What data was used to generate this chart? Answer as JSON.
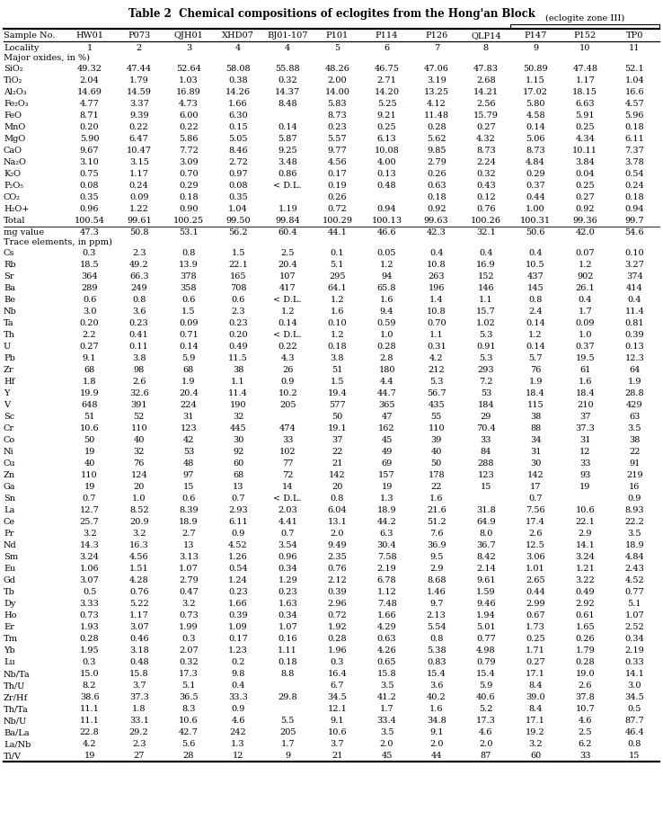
{
  "title": "Table 2  Chemical compositions of eclogites from the Hong'an Block",
  "header_group_label": "(eclogite zone III)",
  "col_headers": [
    "Sample No.",
    "HW01",
    "P073",
    "QJH01",
    "XHD07",
    "BJ01-107",
    "P101",
    "P114",
    "P126",
    "QLP14",
    "P147",
    "P152",
    "TP0"
  ],
  "locality_row": [
    "Locality",
    "1",
    "2",
    "3",
    "4",
    "4",
    "5",
    "6",
    "7",
    "8",
    "9",
    "10",
    "11"
  ],
  "section1_label": "Major oxides, in %)",
  "section2_label": "Trace elements, in ppm)",
  "rows": [
    [
      "SiO₂",
      "49.32",
      "47.44",
      "52.64",
      "58.08",
      "55.88",
      "48.26",
      "46.75",
      "47.06",
      "47.83",
      "50.89",
      "47.48",
      "52.1"
    ],
    [
      "TiO₂",
      "2.04",
      "1.79",
      "1.03",
      "0.38",
      "0.32",
      "2.00",
      "2.71",
      "3.19",
      "2.68",
      "1.15",
      "1.17",
      "1.04"
    ],
    [
      "Al₂O₃",
      "14.69",
      "14.59",
      "16.89",
      "14.26",
      "14.37",
      "14.00",
      "14.20",
      "13.25",
      "14.21",
      "17.02",
      "18.15",
      "16.6"
    ],
    [
      "Fe₂O₃",
      "4.77",
      "3.37",
      "4.73",
      "1.66",
      "8.48",
      "5.83",
      "5.25",
      "4.12",
      "2.56",
      "5.80",
      "6.63",
      "4.57"
    ],
    [
      "FeO",
      "8.71",
      "9.39",
      "6.00",
      "6.30",
      "",
      "8.73",
      "9.21",
      "11.48",
      "15.79",
      "4.58",
      "5.91",
      "5.96"
    ],
    [
      "MnO",
      "0.20",
      "0.22",
      "0.22",
      "0.15",
      "0.14",
      "0.23",
      "0.25",
      "0.28",
      "0.27",
      "0.14",
      "0.25",
      "0.18"
    ],
    [
      "MgO",
      "5.90",
      "6.47",
      "5.86",
      "5.05",
      "5.87",
      "5.57",
      "6.13",
      "5.62",
      "4.32",
      "5.06",
      "4.34",
      "6.11"
    ],
    [
      "CaO",
      "9.67",
      "10.47",
      "7.72",
      "8.46",
      "9.25",
      "9.77",
      "10.08",
      "9.85",
      "8.73",
      "8.73",
      "10.11",
      "7.37"
    ],
    [
      "Na₂O",
      "3.10",
      "3.15",
      "3.09",
      "2.72",
      "3.48",
      "4.56",
      "4.00",
      "2.79",
      "2.24",
      "4.84",
      "3.84",
      "3.78"
    ],
    [
      "K₂O",
      "0.75",
      "1.17",
      "0.70",
      "0.97",
      "0.86",
      "0.17",
      "0.13",
      "0.26",
      "0.32",
      "0.29",
      "0.04",
      "0.54"
    ],
    [
      "P₂O₅",
      "0.08",
      "0.24",
      "0.29",
      "0.08",
      "< D.L.",
      "0.19",
      "0.48",
      "0.63",
      "0.43",
      "0.37",
      "0.25",
      "0.24"
    ],
    [
      "CO₂",
      "0.35",
      "0.09",
      "0.18",
      "0.35",
      "",
      "0.26",
      "",
      "0.18",
      "0.12",
      "0.44",
      "0.27",
      "0.18"
    ],
    [
      "H₂O+",
      "0.96",
      "1.22",
      "0.90",
      "1.04",
      "1.19",
      "0.72",
      "0.94",
      "0.92",
      "0.76",
      "1.00",
      "0.92",
      "0.94"
    ],
    [
      "Total",
      "100.54",
      "99.61",
      "100.25",
      "99.50",
      "99.84",
      "100.29",
      "100.13",
      "99.63",
      "100.26",
      "100.31",
      "99.36",
      "99.7"
    ],
    [
      "mg value",
      "47.3",
      "50.8",
      "53.1",
      "56.2",
      "60.4",
      "44.1",
      "46.6",
      "42.3",
      "32.1",
      "50.6",
      "42.0",
      "54.6"
    ],
    [
      "Cs",
      "0.3",
      "2.3",
      "0.8",
      "1.5",
      "2.5",
      "0.1",
      "0.05",
      "0.4",
      "0.4",
      "0.4",
      "0.07",
      "0.10"
    ],
    [
      "Rb",
      "18.5",
      "49.2",
      "13.9",
      "22.1",
      "20.4",
      "5.1",
      "1.2",
      "10.8",
      "16.9",
      "10.5",
      "1.2",
      "3.27"
    ],
    [
      "Sr",
      "364",
      "66.3",
      "378",
      "165",
      "107",
      "295",
      "94",
      "263",
      "152",
      "437",
      "902",
      "374"
    ],
    [
      "Ba",
      "289",
      "249",
      "358",
      "708",
      "417",
      "64.1",
      "65.8",
      "196",
      "146",
      "145",
      "26.1",
      "414"
    ],
    [
      "Be",
      "0.6",
      "0.8",
      "0.6",
      "0.6",
      "< D.L.",
      "1.2",
      "1.6",
      "1.4",
      "1.1",
      "0.8",
      "0.4",
      "0.4"
    ],
    [
      "Nb",
      "3.0",
      "3.6",
      "1.5",
      "2.3",
      "1.2",
      "1.6",
      "9.4",
      "10.8",
      "15.7",
      "2.4",
      "1.7",
      "11.4"
    ],
    [
      "Ta",
      "0.20",
      "0.23",
      "0.09",
      "0.23",
      "0.14",
      "0.10",
      "0.59",
      "0.70",
      "1.02",
      "0.14",
      "0.09",
      "0.81"
    ],
    [
      "Th",
      "2.2",
      "0.41",
      "0.71",
      "0.20",
      "< D.L.",
      "1.2",
      "1.0",
      "1.1",
      "5.3",
      "1.2",
      "1.0",
      "0.39"
    ],
    [
      "U",
      "0.27",
      "0.11",
      "0.14",
      "0.49",
      "0.22",
      "0.18",
      "0.28",
      "0.31",
      "0.91",
      "0.14",
      "0.37",
      "0.13"
    ],
    [
      "Pb",
      "9.1",
      "3.8",
      "5.9",
      "11.5",
      "4.3",
      "3.8",
      "2.8",
      "4.2",
      "5.3",
      "5.7",
      "19.5",
      "12.3"
    ],
    [
      "Zr",
      "68",
      "98",
      "68",
      "38",
      "26",
      "51",
      "180",
      "212",
      "293",
      "76",
      "61",
      "64"
    ],
    [
      "Hf",
      "1.8",
      "2.6",
      "1.9",
      "1.1",
      "0.9",
      "1.5",
      "4.4",
      "5.3",
      "7.2",
      "1.9",
      "1.6",
      "1.9"
    ],
    [
      "Y",
      "19.9",
      "32.6",
      "20.4",
      "11.4",
      "10.2",
      "19.4",
      "44.7",
      "56.7",
      "53",
      "18.4",
      "18.4",
      "28.8"
    ],
    [
      "V",
      "648",
      "391",
      "224",
      "190",
      "205",
      "577",
      "365",
      "435",
      "184",
      "115",
      "210",
      "429"
    ],
    [
      "Sc",
      "51",
      "52",
      "31",
      "32",
      "",
      "50",
      "47",
      "55",
      "29",
      "38",
      "37",
      "63"
    ],
    [
      "Cr",
      "10.6",
      "110",
      "123",
      "445",
      "474",
      "19.1",
      "162",
      "110",
      "70.4",
      "88",
      "37.3",
      "3.5"
    ],
    [
      "Co",
      "50",
      "40",
      "42",
      "30",
      "33",
      "37",
      "45",
      "39",
      "33",
      "34",
      "31",
      "38"
    ],
    [
      "Ni",
      "19",
      "32",
      "53",
      "92",
      "102",
      "22",
      "49",
      "40",
      "84",
      "31",
      "12",
      "22"
    ],
    [
      "Cu",
      "40",
      "76",
      "48",
      "60",
      "77",
      "21",
      "69",
      "50",
      "288",
      "30",
      "33",
      "91"
    ],
    [
      "Zn",
      "110",
      "124",
      "97",
      "68",
      "72",
      "142",
      "157",
      "178",
      "123",
      "142",
      "93",
      "219"
    ],
    [
      "Ga",
      "19",
      "20",
      "15",
      "13",
      "14",
      "20",
      "19",
      "22",
      "15",
      "17",
      "19",
      "16"
    ],
    [
      "Sn",
      "0.7",
      "1.0",
      "0.6",
      "0.7",
      "< D.L.",
      "0.8",
      "1.3",
      "1.6",
      "",
      "0.7",
      "",
      "0.9"
    ],
    [
      "La",
      "12.7",
      "8.52",
      "8.39",
      "2.93",
      "2.03",
      "6.04",
      "18.9",
      "21.6",
      "31.8",
      "7.56",
      "10.6",
      "8.93"
    ],
    [
      "Ce",
      "25.7",
      "20.9",
      "18.9",
      "6.11",
      "4.41",
      "13.1",
      "44.2",
      "51.2",
      "64.9",
      "17.4",
      "22.1",
      "22.2"
    ],
    [
      "Pr",
      "3.2",
      "3.2",
      "2.7",
      "0.9",
      "0.7",
      "2.0",
      "6.3",
      "7.6",
      "8.0",
      "2.6",
      "2.9",
      "3.5"
    ],
    [
      "Nd",
      "14.3",
      "16.3",
      "13",
      "4.52",
      "3.54",
      "9.49",
      "30.4",
      "36.9",
      "36.7",
      "12.5",
      "14.1",
      "18.9"
    ],
    [
      "Sm",
      "3.24",
      "4.56",
      "3.13",
      "1.26",
      "0.96",
      "2.35",
      "7.58",
      "9.5",
      "8.42",
      "3.06",
      "3.24",
      "4.84"
    ],
    [
      "Eu",
      "1.06",
      "1.51",
      "1.07",
      "0.54",
      "0.34",
      "0.76",
      "2.19",
      "2.9",
      "2.14",
      "1.01",
      "1.21",
      "2.43"
    ],
    [
      "Gd",
      "3.07",
      "4.28",
      "2.79",
      "1.24",
      "1.29",
      "2.12",
      "6.78",
      "8.68",
      "9.61",
      "2.65",
      "3.22",
      "4.52"
    ],
    [
      "Tb",
      "0.5",
      "0.76",
      "0.47",
      "0.23",
      "0.23",
      "0.39",
      "1.12",
      "1.46",
      "1.59",
      "0.44",
      "0.49",
      "0.77"
    ],
    [
      "Dy",
      "3.33",
      "5.22",
      "3.2",
      "1.66",
      "1.63",
      "2.96",
      "7.48",
      "9.7",
      "9.46",
      "2.99",
      "2.92",
      "5.1"
    ],
    [
      "Ho",
      "0.73",
      "1.17",
      "0.73",
      "0.39",
      "0.34",
      "0.72",
      "1.66",
      "2.13",
      "1.94",
      "0.67",
      "0.61",
      "1.07"
    ],
    [
      "Er",
      "1.93",
      "3.07",
      "1.99",
      "1.09",
      "1.07",
      "1.92",
      "4.29",
      "5.54",
      "5.01",
      "1.73",
      "1.65",
      "2.52"
    ],
    [
      "Tm",
      "0.28",
      "0.46",
      "0.3",
      "0.17",
      "0.16",
      "0.28",
      "0.63",
      "0.8",
      "0.77",
      "0.25",
      "0.26",
      "0.34"
    ],
    [
      "Yb",
      "1.95",
      "3.18",
      "2.07",
      "1.23",
      "1.11",
      "1.96",
      "4.26",
      "5.38",
      "4.98",
      "1.71",
      "1.79",
      "2.19"
    ],
    [
      "Lu",
      "0.3",
      "0.48",
      "0.32",
      "0.2",
      "0.18",
      "0.3",
      "0.65",
      "0.83",
      "0.79",
      "0.27",
      "0.28",
      "0.33"
    ],
    [
      "Nb/Ta",
      "15.0",
      "15.8",
      "17.3",
      "9.8",
      "8.8",
      "16.4",
      "15.8",
      "15.4",
      "15.4",
      "17.1",
      "19.0",
      "14.1"
    ],
    [
      "Th/U",
      "8.2",
      "3.7",
      "5.1",
      "0.4",
      "",
      "6.7",
      "3.5",
      "3.6",
      "5.9",
      "8.4",
      "2.6",
      "3.0"
    ],
    [
      "Zr/Hf",
      "38.6",
      "37.3",
      "36.5",
      "33.3",
      "29.8",
      "34.5",
      "41.2",
      "40.2",
      "40.6",
      "39.0",
      "37.8",
      "34.5"
    ],
    [
      "Th/Ta",
      "11.1",
      "1.8",
      "8.3",
      "0.9",
      "",
      "12.1",
      "1.7",
      "1.6",
      "5.2",
      "8.4",
      "10.7",
      "0.5"
    ],
    [
      "Nb/U",
      "11.1",
      "33.1",
      "10.6",
      "4.6",
      "5.5",
      "9.1",
      "33.4",
      "34.8",
      "17.3",
      "17.1",
      "4.6",
      "87.7"
    ],
    [
      "Ba/La",
      "22.8",
      "29.2",
      "42.7",
      "242",
      "205",
      "10.6",
      "3.5",
      "9.1",
      "4.6",
      "19.2",
      "2.5",
      "46.4"
    ],
    [
      "La/Nb",
      "4.2",
      "2.3",
      "5.6",
      "1.3",
      "1.7",
      "3.7",
      "2.0",
      "2.0",
      "2.0",
      "3.2",
      "6.2",
      "0.8"
    ],
    [
      "Ti/V",
      "19",
      "27",
      "28",
      "12",
      "9",
      "21",
      "45",
      "44",
      "87",
      "60",
      "33",
      "15"
    ]
  ]
}
